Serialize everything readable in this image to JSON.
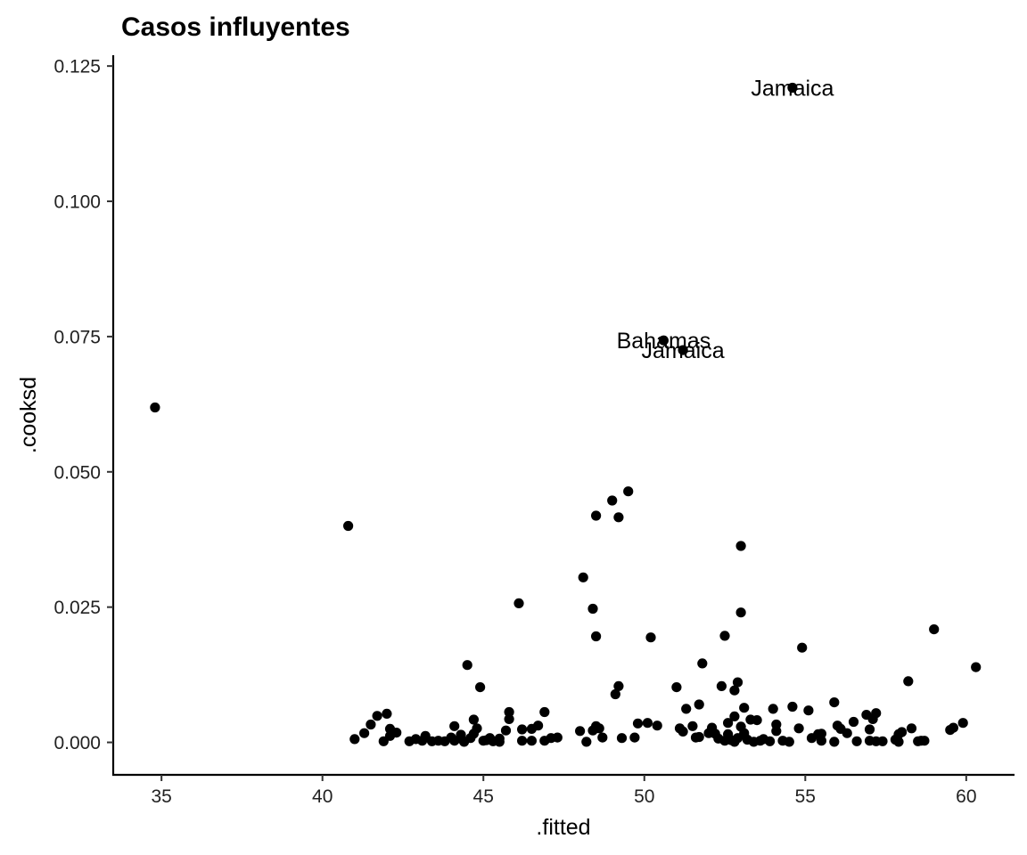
{
  "chart_data": {
    "type": "scatter",
    "title": "Casos influyentes",
    "xlabel": ".fitted",
    "ylabel": ".cooksd",
    "xlim": [
      33.5,
      61.5
    ],
    "ylim": [
      -0.006,
      0.127
    ],
    "xticks": [
      35,
      40,
      45,
      50,
      55,
      60
    ],
    "yticks": [
      0.0,
      0.025,
      0.05,
      0.075,
      0.1,
      0.125
    ],
    "xtick_labels": [
      "35",
      "40",
      "45",
      "50",
      "55",
      "60"
    ],
    "ytick_labels": [
      "0.000",
      "0.025",
      "0.050",
      "0.075",
      "0.100",
      "0.125"
    ],
    "grid": false,
    "legend": "none",
    "point_color": "#000000",
    "points": [
      [
        34.8,
        0.0619
      ],
      [
        40.8,
        0.04
      ],
      [
        41.0,
        0.0006
      ],
      [
        41.3,
        0.0017
      ],
      [
        41.5,
        0.0033
      ],
      [
        41.7,
        0.0049
      ],
      [
        41.9,
        0.0002
      ],
      [
        42.0,
        0.0053
      ],
      [
        42.1,
        0.0025
      ],
      [
        42.1,
        0.0012
      ],
      [
        42.3,
        0.0018
      ],
      [
        42.7,
        0.0002
      ],
      [
        42.9,
        0.0006
      ],
      [
        43.1,
        0.0003
      ],
      [
        43.2,
        0.0012
      ],
      [
        43.4,
        0.0002
      ],
      [
        43.6,
        0.0003
      ],
      [
        43.8,
        0.0002
      ],
      [
        44.0,
        0.0009
      ],
      [
        44.1,
        0.0003
      ],
      [
        44.1,
        0.003
      ],
      [
        44.3,
        0.0007
      ],
      [
        44.3,
        0.0014
      ],
      [
        44.4,
        0.0001
      ],
      [
        44.5,
        0.0143
      ],
      [
        44.6,
        0.0008
      ],
      [
        44.7,
        0.0016
      ],
      [
        44.7,
        0.0042
      ],
      [
        44.8,
        0.0026
      ],
      [
        44.9,
        0.0102
      ],
      [
        45.0,
        0.0003
      ],
      [
        45.1,
        0.0004
      ],
      [
        45.2,
        0.0008
      ],
      [
        45.3,
        0.0002
      ],
      [
        45.5,
        0.0007
      ],
      [
        45.5,
        0.0001
      ],
      [
        45.7,
        0.0022
      ],
      [
        45.8,
        0.0043
      ],
      [
        45.8,
        0.0056
      ],
      [
        46.1,
        0.0257
      ],
      [
        46.2,
        0.0024
      ],
      [
        46.2,
        0.0003
      ],
      [
        46.5,
        0.0025
      ],
      [
        46.5,
        0.0003
      ],
      [
        46.7,
        0.0031
      ],
      [
        46.9,
        0.0056
      ],
      [
        46.9,
        0.0003
      ],
      [
        47.1,
        0.0008
      ],
      [
        47.3,
        0.0009
      ],
      [
        48.0,
        0.0021
      ],
      [
        48.1,
        0.0305
      ],
      [
        48.2,
        0.0001
      ],
      [
        48.4,
        0.0247
      ],
      [
        48.4,
        0.0022
      ],
      [
        48.5,
        0.0196
      ],
      [
        48.5,
        0.0419
      ],
      [
        48.5,
        0.003
      ],
      [
        48.6,
        0.0026
      ],
      [
        48.7,
        0.0009
      ],
      [
        49.0,
        0.0447
      ],
      [
        49.1,
        0.0089
      ],
      [
        49.2,
        0.0416
      ],
      [
        49.2,
        0.0104
      ],
      [
        49.3,
        0.0008
      ],
      [
        49.5,
        0.0464
      ],
      [
        49.7,
        0.0009
      ],
      [
        49.8,
        0.0035
      ],
      [
        50.1,
        0.0036
      ],
      [
        50.2,
        0.0194
      ],
      [
        50.4,
        0.0031
      ],
      [
        50.6,
        0.0743
      ],
      [
        51.0,
        0.0102
      ],
      [
        51.1,
        0.0026
      ],
      [
        51.2,
        0.0725
      ],
      [
        51.2,
        0.002
      ],
      [
        51.3,
        0.0062
      ],
      [
        51.5,
        0.003
      ],
      [
        51.6,
        0.0009
      ],
      [
        51.7,
        0.007
      ],
      [
        51.7,
        0.001
      ],
      [
        51.8,
        0.0146
      ],
      [
        52.0,
        0.0017
      ],
      [
        52.1,
        0.0027
      ],
      [
        52.2,
        0.0016
      ],
      [
        52.3,
        0.0007
      ],
      [
        52.4,
        0.0104
      ],
      [
        52.5,
        0.0003
      ],
      [
        52.5,
        0.0197
      ],
      [
        52.6,
        0.0036
      ],
      [
        52.6,
        0.0015
      ],
      [
        52.7,
        0.0004
      ],
      [
        52.8,
        0.0048
      ],
      [
        52.8,
        0.0096
      ],
      [
        52.8,
        0.0001
      ],
      [
        52.9,
        0.0111
      ],
      [
        52.9,
        0.0008
      ],
      [
        53.0,
        0.0363
      ],
      [
        53.0,
        0.024
      ],
      [
        53.0,
        0.0029
      ],
      [
        53.1,
        0.0064
      ],
      [
        53.1,
        0.0017
      ],
      [
        53.2,
        0.0005
      ],
      [
        53.3,
        0.0042
      ],
      [
        53.4,
        0.0001
      ],
      [
        53.5,
        0.0041
      ],
      [
        53.6,
        0.0003
      ],
      [
        53.7,
        0.0006
      ],
      [
        53.9,
        0.0002
      ],
      [
        54.0,
        0.0062
      ],
      [
        54.1,
        0.0033
      ],
      [
        54.1,
        0.0021
      ],
      [
        54.3,
        0.0003
      ],
      [
        54.5,
        0.0001
      ],
      [
        54.6,
        0.121
      ],
      [
        54.6,
        0.0066
      ],
      [
        54.8,
        0.0026
      ],
      [
        54.9,
        0.0175
      ],
      [
        55.1,
        0.0059
      ],
      [
        55.2,
        0.0008
      ],
      [
        55.4,
        0.0015
      ],
      [
        55.5,
        0.0016
      ],
      [
        55.5,
        0.0003
      ],
      [
        55.9,
        0.0074
      ],
      [
        55.9,
        0.0001
      ],
      [
        56.0,
        0.0031
      ],
      [
        56.1,
        0.0025
      ],
      [
        56.3,
        0.0017
      ],
      [
        56.5,
        0.0038
      ],
      [
        56.6,
        0.0002
      ],
      [
        56.9,
        0.0051
      ],
      [
        57.0,
        0.0024
      ],
      [
        57.0,
        0.0003
      ],
      [
        57.1,
        0.0043
      ],
      [
        57.2,
        0.0054
      ],
      [
        57.2,
        0.0002
      ],
      [
        57.4,
        0.0002
      ],
      [
        57.8,
        0.0005
      ],
      [
        57.9,
        0.0015
      ],
      [
        57.9,
        0.0001
      ],
      [
        58.0,
        0.0019
      ],
      [
        58.2,
        0.0113
      ],
      [
        58.3,
        0.0026
      ],
      [
        58.5,
        0.0002
      ],
      [
        58.6,
        0.0003
      ],
      [
        58.7,
        0.0003
      ],
      [
        59.0,
        0.0209
      ],
      [
        59.5,
        0.0023
      ],
      [
        59.6,
        0.0027
      ],
      [
        59.9,
        0.0036
      ],
      [
        60.3,
        0.0139
      ]
    ],
    "annotations": [
      {
        "label": "Jamaica",
        "x": 54.6,
        "y": 0.121
      },
      {
        "label": "Bahamas",
        "x": 50.6,
        "y": 0.0743
      },
      {
        "label": "Jamaica",
        "x": 51.2,
        "y": 0.0725
      }
    ]
  }
}
